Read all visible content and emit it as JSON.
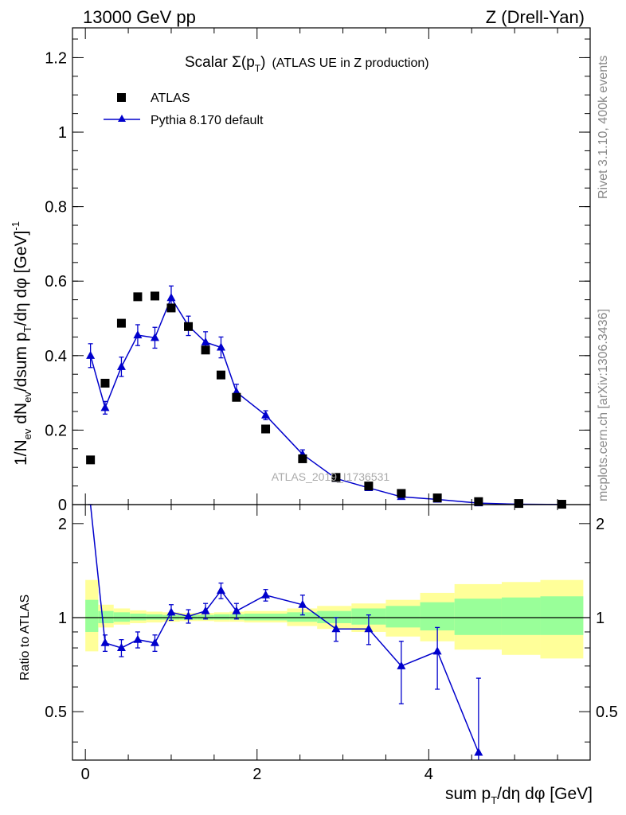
{
  "header": {
    "left": "13000 GeV pp",
    "right": "Z (Drell-Yan)"
  },
  "side": {
    "rivet": "Rivet 3.1.10,  400k events",
    "mcplots": "mcplots.cern.ch [arXiv:1306.3436]"
  },
  "watermark": "ATLAS_2019_I1736531",
  "colors": {
    "mc": "#0000cc",
    "data": "#000000",
    "band_stat": "#99ff99",
    "band_total": "#ffff99"
  },
  "chart_data": [
    {
      "type": "scatter",
      "title": "Scalar Σ(pT) (ATLAS UE in Z production)",
      "title_main": "Scalar ",
      "title_sigma": "Σ(p",
      "title_sub": "T",
      "title_close": ")",
      "title_rest": "(ATLAS UE in Z production)",
      "ylabel": "1/N_ev dN_ev/dsum p_T/dη dφ [GeV]^-1",
      "ylim": [
        0,
        1.28
      ],
      "xlim": [
        -0.15,
        5.88
      ],
      "yticks": [
        "0",
        "0.2",
        "0.4",
        "0.6",
        "0.8",
        "1",
        "1.2"
      ],
      "ytick_values": [
        0,
        0.2,
        0.4,
        0.6,
        0.8,
        1.0,
        1.2
      ],
      "legend": {
        "data": "ATLAS",
        "mc": "Pythia 8.170 default",
        "placement": "top-left"
      },
      "x": [
        0.06,
        0.23,
        0.42,
        0.61,
        0.81,
        1.0,
        1.2,
        1.4,
        1.58,
        1.76,
        2.1,
        2.53,
        2.92,
        3.3,
        3.68,
        4.1,
        4.58,
        5.05,
        5.55
      ],
      "series": [
        {
          "name": "ATLAS",
          "values": [
            0.12,
            0.326,
            0.487,
            0.558,
            0.56,
            0.528,
            0.478,
            0.415,
            0.348,
            0.288,
            0.203,
            0.123,
            0.073,
            0.05,
            0.03,
            0.018,
            0.008,
            0.003,
            0.001
          ]
        },
        {
          "name": "Pythia 8.170 default",
          "values": [
            0.4,
            0.26,
            0.37,
            0.455,
            0.448,
            0.555,
            0.48,
            0.436,
            0.422,
            0.302,
            0.24,
            0.135,
            0.07,
            0.045,
            0.021,
            0.014,
            0.004,
            0.001,
            0.0003
          ],
          "errors": [
            0.032,
            0.017,
            0.026,
            0.028,
            0.028,
            0.032,
            0.026,
            0.028,
            0.028,
            0.021,
            0.012,
            0.012,
            0.006,
            0.004,
            0.003,
            0.002,
            0.001,
            0.0005,
            0.0002
          ]
        }
      ]
    },
    {
      "type": "line",
      "ylabel": "Ratio to ATLAS",
      "xlabel": "sum p_T/dη dφ [GeV]",
      "ylim": [
        0.35,
        2.3
      ],
      "xlim": [
        -0.15,
        5.88
      ],
      "yticks": [
        "0.5",
        "1",
        "2"
      ],
      "ytick_values": [
        0.5,
        1,
        2
      ],
      "xticks": [
        "0",
        "2",
        "4"
      ],
      "xtick_values": [
        0,
        2,
        4
      ],
      "bin_edges": [
        0,
        0.15,
        0.33,
        0.52,
        0.71,
        0.9,
        1.1,
        1.3,
        1.5,
        1.68,
        1.85,
        2.35,
        2.7,
        3.1,
        3.5,
        3.9,
        4.3,
        4.85,
        5.3,
        5.8
      ],
      "band_total_lo": [
        0.78,
        0.93,
        0.95,
        0.96,
        0.965,
        0.97,
        0.975,
        0.975,
        0.97,
        0.97,
        0.965,
        0.94,
        0.92,
        0.9,
        0.87,
        0.84,
        0.79,
        0.76,
        0.74
      ],
      "band_total_hi": [
        1.32,
        1.1,
        1.07,
        1.055,
        1.045,
        1.04,
        1.035,
        1.035,
        1.04,
        1.045,
        1.05,
        1.07,
        1.09,
        1.11,
        1.14,
        1.2,
        1.28,
        1.3,
        1.32
      ],
      "band_stat_lo": [
        0.9,
        0.96,
        0.97,
        0.98,
        0.985,
        0.985,
        0.985,
        0.985,
        0.985,
        0.985,
        0.98,
        0.97,
        0.96,
        0.95,
        0.93,
        0.91,
        0.88,
        0.88,
        0.88
      ],
      "band_stat_hi": [
        1.14,
        1.05,
        1.04,
        1.03,
        1.025,
        1.02,
        1.02,
        1.02,
        1.025,
        1.025,
        1.03,
        1.04,
        1.05,
        1.07,
        1.09,
        1.12,
        1.15,
        1.16,
        1.17
      ],
      "x": [
        0.06,
        0.23,
        0.42,
        0.61,
        0.81,
        1.0,
        1.2,
        1.4,
        1.58,
        1.76,
        2.1,
        2.53,
        2.92,
        3.3,
        3.68,
        4.1,
        4.58
      ],
      "series": [
        {
          "name": "Pythia 8.170 default",
          "values": [
            3.3,
            0.83,
            0.8,
            0.85,
            0.83,
            1.04,
            1.01,
            1.05,
            1.22,
            1.05,
            1.18,
            1.1,
            0.92,
            0.92,
            0.7,
            0.78,
            0.37
          ],
          "err_lo": [
            0.2,
            0.05,
            0.05,
            0.05,
            0.05,
            0.06,
            0.05,
            0.06,
            0.07,
            0.06,
            0.05,
            0.08,
            0.08,
            0.1,
            0.17,
            0.19,
            0.14
          ],
          "err_hi": [
            0.2,
            0.05,
            0.05,
            0.05,
            0.05,
            0.06,
            0.05,
            0.06,
            0.07,
            0.06,
            0.05,
            0.08,
            0.08,
            0.1,
            0.14,
            0.15,
            0.27
          ]
        }
      ]
    }
  ]
}
